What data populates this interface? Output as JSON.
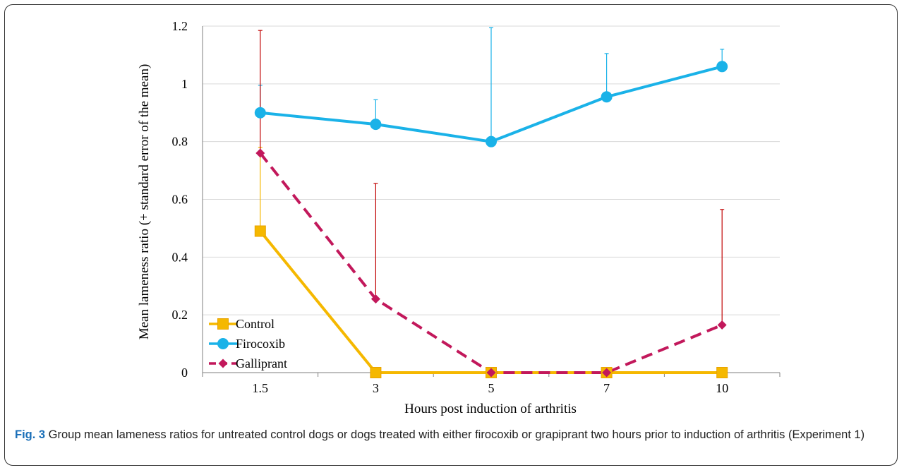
{
  "chart_data": {
    "type": "line",
    "xlabel": "Hours post induction of arthritis",
    "ylabel": "Mean lameness ratio (+ standard error of the mean)",
    "categories": [
      "1.5",
      "3",
      "5",
      "7",
      "10"
    ],
    "ylim": [
      0,
      1.2
    ],
    "yticks": [
      "0",
      "0.2",
      "0.4",
      "0.6",
      "0.8",
      "1",
      "1.2"
    ],
    "grid": "horizontal",
    "legend": "bottom-left",
    "series": [
      {
        "name": "Control",
        "values": [
          0.49,
          0,
          0,
          0,
          0
        ],
        "error_upper": [
          0.78,
          0,
          0,
          0,
          0
        ],
        "color": "#f5b800",
        "marker": "square",
        "line_style": "solid"
      },
      {
        "name": "Firocoxib",
        "values": [
          0.9,
          0.86,
          0.8,
          0.955,
          1.06
        ],
        "error_upper": [
          0.995,
          0.945,
          1.195,
          1.105,
          1.12
        ],
        "color": "#1ab2e8",
        "marker": "circle",
        "line_style": "solid"
      },
      {
        "name": "Galliprant",
        "values": [
          0.76,
          0.255,
          0,
          0,
          0.165
        ],
        "error_upper": [
          1.185,
          0.655,
          0,
          0,
          0.565
        ],
        "color": "#c2185b",
        "error_color": "#c00000",
        "marker": "diamond",
        "line_style": "dashed"
      }
    ]
  },
  "caption": {
    "label": "Fig. 3",
    "text": " Group mean lameness ratios for untreated control dogs or dogs treated with either firocoxib or grapiprant two hours prior to induction of arthritis (Experiment 1)"
  }
}
